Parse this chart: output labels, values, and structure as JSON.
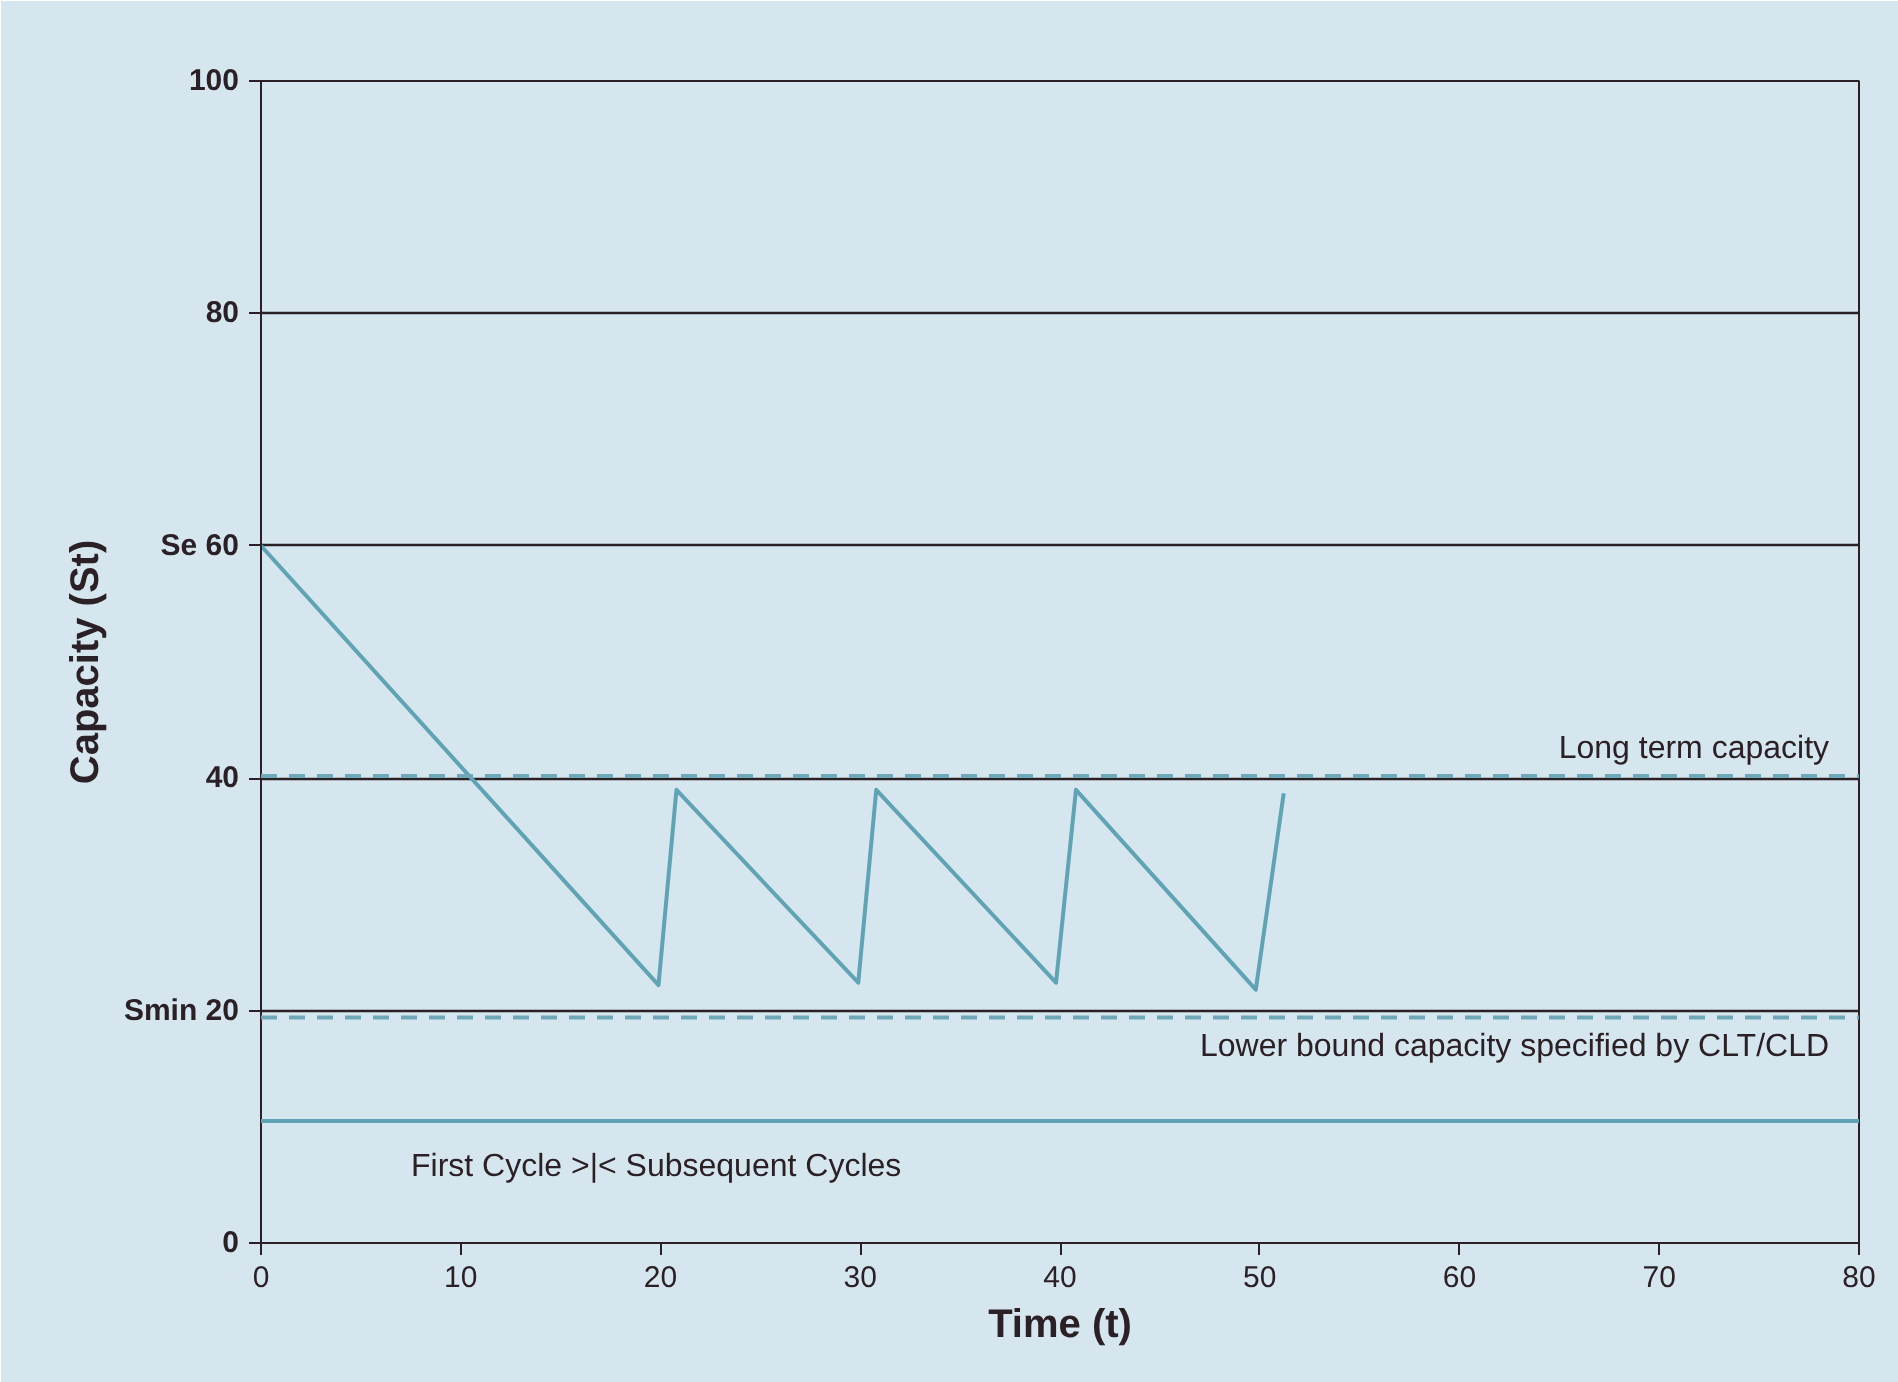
{
  "chart_data": {
    "type": "line",
    "xlabel": "Time (t)",
    "ylabel": "Capacity (St)",
    "x": [
      0,
      19.9,
      20.8,
      29.9,
      30.8,
      39.8,
      40.8,
      49.8,
      51.2
    ],
    "series": [
      {
        "color": "#5fa3b5",
        "values": [
          60,
          22.2,
          39,
          22.4,
          39,
          22.4,
          39,
          21.8,
          38.7
        ]
      }
    ],
    "xlim": [
      0,
      80
    ],
    "ylim": [
      0,
      100
    ],
    "xticks": [
      0,
      10,
      20,
      30,
      40,
      50,
      60,
      70,
      80
    ],
    "yticks": [
      0,
      {
        "value": 20,
        "label": "Smin 20"
      },
      40,
      {
        "value": 60,
        "label": "Se 60"
      },
      80,
      100
    ],
    "grid": "y",
    "line_style": "solid",
    "ref_lines": [
      {
        "axis": "y",
        "value": 40.2,
        "label": "Long term capacity",
        "color": "#6fa8b8",
        "line_style": "dashed"
      },
      {
        "axis": "y",
        "value": 19.4,
        "label": "Lower bound capacity specified by CLT/CLD",
        "color": "#6fa8b8",
        "line_style": "dashed"
      },
      {
        "axis": "y",
        "value": 10.5,
        "label": null,
        "color": "#5fa3b5",
        "line_style": "solid"
      }
    ],
    "annotations": [
      "First Cycle    >|<    Subsequent Cycles"
    ]
  }
}
